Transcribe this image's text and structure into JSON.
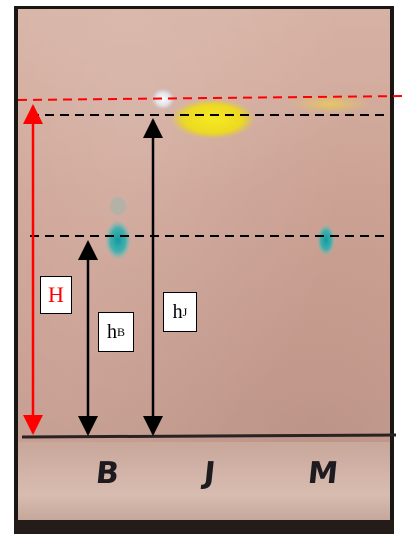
{
  "lanes": [
    "B",
    "J",
    "M"
  ],
  "labels": {
    "H": "H",
    "hB_base": "h",
    "hB_sub": "B",
    "hJ_base": "h",
    "hJ_sub": "J"
  },
  "colors": {
    "solvent_front": "#ff0000",
    "reference_lines": "#000000",
    "H_arrow": "#ff0000",
    "spot_yellow": "#f2e21a",
    "spot_teal": "#1fa7a4"
  }
}
